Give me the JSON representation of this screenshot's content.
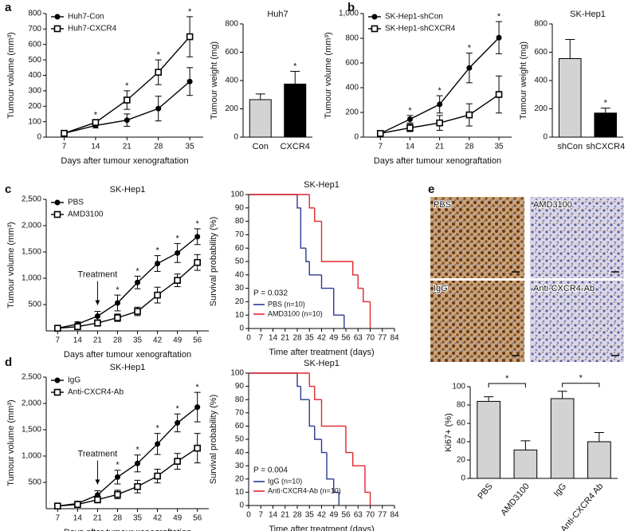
{
  "chart_data": [
    {
      "panel": "a",
      "type": "line",
      "xlabel": "Days after tumour xenograftation",
      "ylabel": "Tumour volume (mm³)",
      "x": [
        7,
        14,
        21,
        28,
        35
      ],
      "xlim": [
        3,
        38
      ],
      "xticks": [
        7,
        14,
        21,
        28,
        35
      ],
      "ylim": [
        0,
        800
      ],
      "yticks": [
        0,
        100,
        200,
        300,
        400,
        500,
        600,
        700,
        800
      ],
      "series": [
        {
          "name": "Huh7-Con",
          "color": "#000000",
          "marker": "circle",
          "values": [
            25,
            75,
            110,
            185,
            360
          ],
          "errors": [
            5,
            15,
            40,
            80,
            90
          ]
        },
        {
          "name": "Huh7-CXCR4",
          "color": "#000000",
          "marker": "square",
          "values": [
            25,
            95,
            240,
            420,
            650
          ],
          "errors": [
            5,
            15,
            60,
            80,
            130
          ]
        }
      ],
      "significance": [
        null,
        "*",
        "*",
        "*",
        "*"
      ],
      "legend": "upper left"
    },
    {
      "type": "bar",
      "title": "Huh7",
      "ylabel": "Tumour weight (mg)",
      "categories": [
        "Con",
        "CXCR4"
      ],
      "values": [
        265,
        375
      ],
      "errors": [
        40,
        90
      ],
      "colors": [
        "#d3d3d3",
        "#000000"
      ],
      "ylim": [
        0,
        800
      ],
      "yticks": [
        0,
        200,
        400,
        600,
        800
      ],
      "significance": [
        null,
        "*"
      ]
    },
    {
      "panel": "b",
      "type": "line",
      "xlabel": "Days after tumour xenograftation",
      "ylabel": "Tumour volume (mm³)",
      "x": [
        7,
        14,
        21,
        28,
        35
      ],
      "xlim": [
        3,
        38
      ],
      "xticks": [
        7,
        14,
        21,
        28,
        35
      ],
      "ylim": [
        0,
        1000
      ],
      "yticks": [
        0,
        200,
        400,
        600,
        800,
        {
          "value": 1000,
          "label": "1,000"
        }
      ],
      "series": [
        {
          "name": "SK-Hep1-shCon",
          "color": "#000000",
          "marker": "circle",
          "values": [
            30,
            145,
            265,
            560,
            805
          ],
          "errors": [
            5,
            30,
            70,
            120,
            130
          ]
        },
        {
          "name": "SK-Hep1-shCXCR4",
          "color": "#000000",
          "marker": "square",
          "values": [
            30,
            75,
            115,
            180,
            345
          ],
          "errors": [
            5,
            30,
            60,
            90,
            150
          ]
        }
      ],
      "significance": [
        null,
        "*",
        "*",
        "*",
        "*"
      ],
      "legend": "upper left"
    },
    {
      "type": "bar",
      "title": "SK-Hep1",
      "ylabel": "Tumour weight (mg)",
      "categories": [
        "shCon",
        "shCXCR4"
      ],
      "values": [
        555,
        170
      ],
      "errors": [
        135,
        35
      ],
      "colors": [
        "#d3d3d3",
        "#000000"
      ],
      "ylim": [
        0,
        800
      ],
      "yticks": [
        0,
        200,
        400,
        600,
        800
      ],
      "significance": [
        null,
        "*"
      ]
    },
    {
      "panel": "c",
      "type": "line",
      "title": "SK-Hep1",
      "xlabel": "Days after tumour xenograftation",
      "ylabel": "Tumour volume (mm³)",
      "x": [
        7,
        14,
        21,
        28,
        35,
        42,
        49,
        56
      ],
      "xlim": [
        3,
        60
      ],
      "xticks": [
        7,
        14,
        21,
        28,
        35,
        42,
        49,
        56
      ],
      "ylim": [
        0,
        2500
      ],
      "yticks": [
        500,
        {
          "value": 1000,
          "label": "1,000"
        },
        {
          "value": 1500,
          "label": "1,500"
        },
        {
          "value": 2000,
          "label": "2,000"
        },
        {
          "value": 2500,
          "label": "2,500"
        }
      ],
      "series": [
        {
          "name": "PBS",
          "color": "#000000",
          "marker": "circle",
          "values": [
            50,
            130,
            280,
            530,
            920,
            1280,
            1480,
            1790
          ],
          "errors": [
            20,
            40,
            90,
            150,
            120,
            150,
            180,
            150
          ]
        },
        {
          "name": "AMD3100",
          "color": "#000000",
          "marker": "square",
          "values": [
            50,
            80,
            150,
            250,
            370,
            680,
            960,
            1300
          ],
          "errors": [
            20,
            30,
            60,
            70,
            80,
            150,
            120,
            150
          ]
        }
      ],
      "significance": [
        null,
        null,
        null,
        "*",
        "*",
        "*",
        "*",
        "*"
      ],
      "annotation": {
        "text": "Treatment",
        "x": 21
      },
      "legend": "upper left"
    },
    {
      "type": "step",
      "title": "SK-Hep1",
      "xlabel": "Time after treatment (days)",
      "ylabel": "Survival probability (%)",
      "xlim": [
        0,
        84
      ],
      "xticks": [
        0,
        7,
        14,
        21,
        28,
        35,
        42,
        49,
        56,
        63,
        70,
        77,
        84
      ],
      "ylim": [
        0,
        100
      ],
      "yticks": [
        0,
        10,
        20,
        30,
        40,
        50,
        60,
        70,
        80,
        90,
        100
      ],
      "series": [
        {
          "name": "PBS (n=10)",
          "color": "#2b3990",
          "x": [
            0,
            28,
            30,
            33,
            35,
            42,
            49,
            55
          ],
          "values": [
            100,
            90,
            60,
            50,
            40,
            30,
            10,
            0
          ]
        },
        {
          "name": "AMD3100 (n=10)",
          "color": "#e3262b",
          "x": [
            0,
            35,
            38,
            42,
            60,
            63,
            66,
            70
          ],
          "values": [
            100,
            90,
            80,
            50,
            40,
            30,
            20,
            0
          ]
        }
      ],
      "annotation": "P = 0.032",
      "legend": "lower left"
    },
    {
      "panel": "d",
      "type": "line",
      "title": "SK-Hep1",
      "xlabel": "Days after tumour xenograftation",
      "ylabel": "Tumour volume (mm³)",
      "x": [
        7,
        14,
        21,
        28,
        35,
        42,
        49,
        56
      ],
      "xlim": [
        3,
        60
      ],
      "xticks": [
        7,
        14,
        21,
        28,
        35,
        42,
        49,
        56
      ],
      "ylim": [
        0,
        2500
      ],
      "yticks": [
        500,
        {
          "value": 1000,
          "label": "1,000"
        },
        {
          "value": 1500,
          "label": "1,500"
        },
        {
          "value": 2000,
          "label": "2,000"
        },
        {
          "value": 2500,
          "label": "2,500"
        }
      ],
      "series": [
        {
          "name": "IgG",
          "color": "#000000",
          "marker": "circle",
          "values": [
            50,
            100,
            260,
            600,
            860,
            1230,
            1630,
            1930
          ],
          "errors": [
            20,
            40,
            80,
            130,
            160,
            200,
            170,
            280
          ]
        },
        {
          "name": "Anti-CXCR4-Ab",
          "color": "#000000",
          "marker": "square",
          "values": [
            50,
            80,
            170,
            270,
            420,
            620,
            900,
            1150
          ],
          "errors": [
            20,
            30,
            60,
            80,
            120,
            130,
            150,
            280
          ]
        }
      ],
      "significance": [
        null,
        null,
        null,
        "*",
        "*",
        "*",
        "*",
        "*"
      ],
      "annotation": {
        "text": "Treatment",
        "x": 21
      },
      "legend": "upper left"
    },
    {
      "type": "step",
      "title": "SK-Hep1",
      "xlabel": "Time after treatment (days)",
      "ylabel": "Survival probability (%)",
      "xlim": [
        0,
        84
      ],
      "xticks": [
        0,
        7,
        14,
        21,
        28,
        35,
        42,
        49,
        56,
        63,
        70,
        77,
        84
      ],
      "ylim": [
        0,
        100
      ],
      "yticks": [
        0,
        10,
        20,
        30,
        40,
        50,
        60,
        70,
        80,
        90,
        100
      ],
      "series": [
        {
          "name": "IgG (n=10)",
          "color": "#2b3990",
          "x": [
            0,
            28,
            30,
            35,
            38,
            42,
            45,
            49,
            52
          ],
          "values": [
            100,
            90,
            80,
            60,
            50,
            40,
            20,
            10,
            0
          ]
        },
        {
          "name": "Anti-CXCR4-Ab (n=10)",
          "color": "#e3262b",
          "x": [
            0,
            35,
            38,
            42,
            49,
            56,
            60,
            67,
            70
          ],
          "values": [
            100,
            90,
            80,
            60,
            60,
            40,
            30,
            10,
            0
          ]
        }
      ],
      "annotation": "P = 0.004",
      "legend": "lower left"
    },
    {
      "panel": "e",
      "type": "bar",
      "ylabel": "Ki67+ (%)",
      "image_labels": [
        "PBS",
        "AMD3100",
        "IgG",
        "Anti-CXCR4-Ab"
      ],
      "categories": [
        "PBS",
        "AMD3100",
        "IgG",
        "Anti-CXCR4 Ab"
      ],
      "values": [
        84,
        31,
        87,
        40
      ],
      "errors": [
        5,
        10,
        8,
        10
      ],
      "colors": [
        "#d3d3d3",
        "#d3d3d3",
        "#d3d3d3",
        "#d3d3d3"
      ],
      "ylim": [
        0,
        100
      ],
      "yticks": [
        0,
        20,
        40,
        60,
        80,
        100
      ],
      "pair_significance": [
        "*",
        "*"
      ],
      "rotate_labels": true
    }
  ]
}
